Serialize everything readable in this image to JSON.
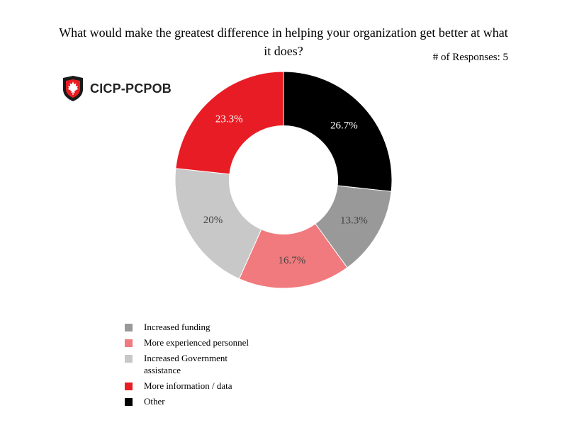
{
  "chart_data": {
    "type": "pie",
    "title": "What would make the greatest difference in helping your organization get better at what it does?",
    "responses_label": "# of Responses: 5",
    "hole": 0.5,
    "legend_position": "bottom-left",
    "slices": [
      {
        "label": "Other",
        "value": 26.7,
        "display": "26.7%",
        "color": "#000000",
        "text_color": "#ffffff"
      },
      {
        "label": "Increased funding",
        "value": 13.3,
        "display": "13.3%",
        "color": "#999999",
        "text_color": "#444444"
      },
      {
        "label": "More experienced personnel",
        "value": 16.7,
        "display": "16.7%",
        "color": "#f07a7d",
        "text_color": "#444444"
      },
      {
        "label": "Increased Government assistance",
        "value": 20,
        "display": "20%",
        "color": "#c8c8c8",
        "text_color": "#444444"
      },
      {
        "label": "More information / data",
        "value": 23.3,
        "display": "23.3%",
        "color": "#e81c24",
        "text_color": "#ffffff"
      }
    ],
    "legend": [
      {
        "label": "Increased funding",
        "color": "#999999"
      },
      {
        "label": "More experienced personnel",
        "color": "#f07a7d"
      },
      {
        "label": "Increased Government assistance",
        "color": "#c8c8c8"
      },
      {
        "label": "More information / data",
        "color": "#e81c24"
      },
      {
        "label": "Other",
        "color": "#000000"
      }
    ]
  },
  "logo": {
    "text": "CICP-PCPOB",
    "icon": "maple-leaf-shield-icon"
  }
}
